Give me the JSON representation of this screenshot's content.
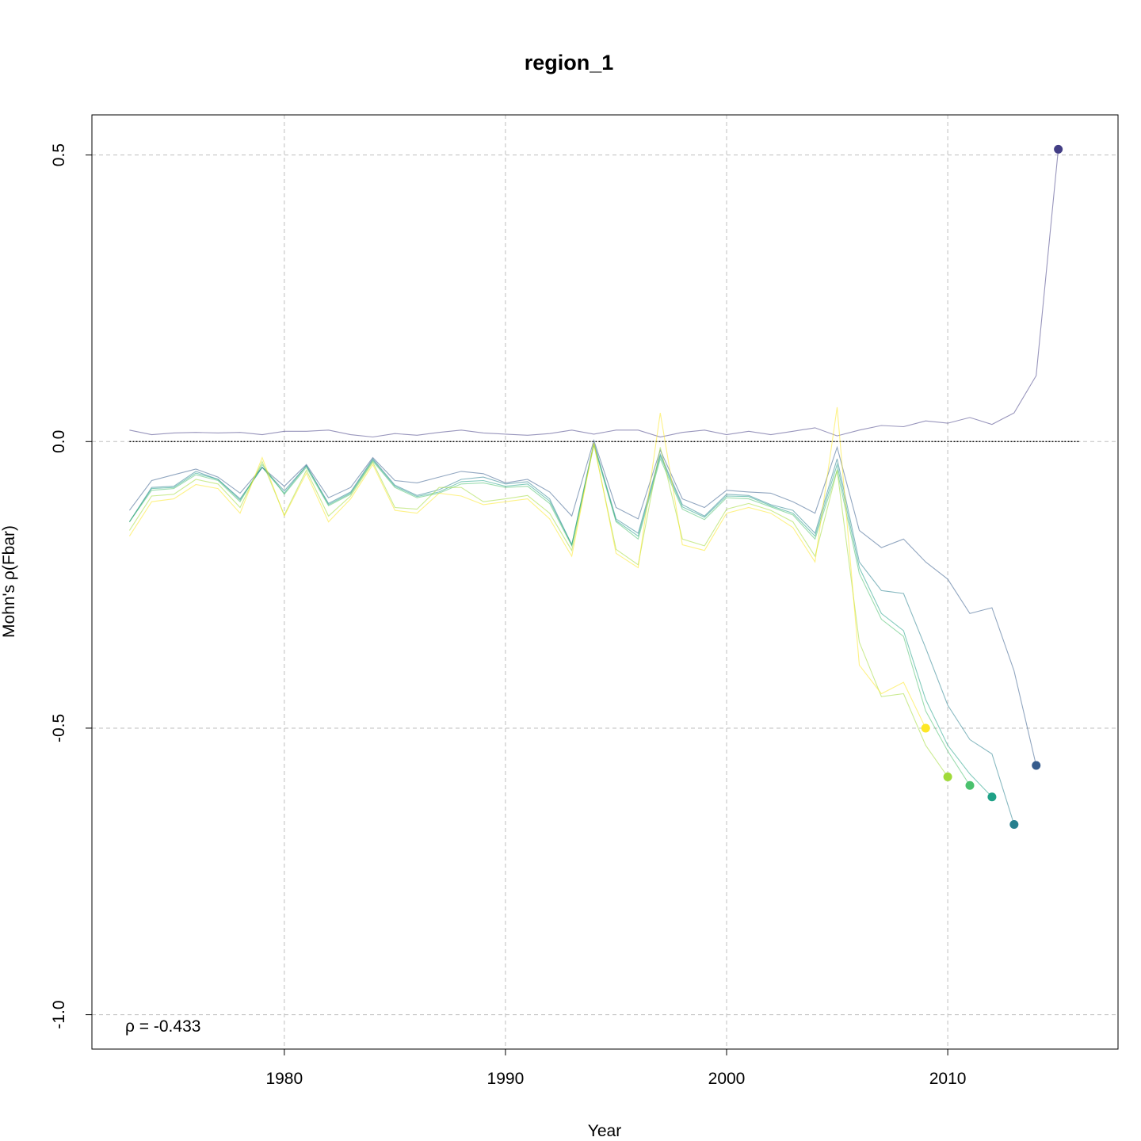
{
  "chart_data": {
    "type": "line",
    "title": "region_1",
    "xlabel": "Year",
    "ylabel": "Mohn's ρ(Fbar)",
    "xlim": [
      1971.3,
      2017.7
    ],
    "ylim": [
      -1.06,
      0.57
    ],
    "x_ticks": [
      1980,
      1990,
      2000,
      2010
    ],
    "y_ticks": [
      0.5,
      0.0,
      -0.5,
      -1.0
    ],
    "y_tick_labels": [
      "0.5",
      "0.0",
      "-0.5",
      "-1.0"
    ],
    "grid": true,
    "reference_line": {
      "y": 0,
      "x_from": 1973,
      "x_to": 2016
    },
    "annotation": {
      "label": "ρ = -0.433",
      "x": 1973,
      "y": -1.02
    },
    "series": [
      {
        "color": "#433e85",
        "x": [
          1973,
          1974,
          1975,
          1976,
          1977,
          1978,
          1979,
          1980,
          1981,
          1982,
          1983,
          1984,
          1985,
          1986,
          1987,
          1988,
          1989,
          1990,
          1991,
          1992,
          1993,
          1994,
          1995,
          1996,
          1997,
          1998,
          1999,
          2000,
          2001,
          2002,
          2003,
          2004,
          2005,
          2006,
          2007,
          2008,
          2009,
          2010,
          2011,
          2012,
          2013,
          2014,
          2015
        ],
        "y": [
          0.02,
          0.012,
          0.015,
          0.016,
          0.015,
          0.016,
          0.012,
          0.018,
          0.018,
          0.02,
          0.012,
          0.008,
          0.014,
          0.011,
          0.016,
          0.02,
          0.015,
          0.013,
          0.011,
          0.014,
          0.02,
          0.013,
          0.02,
          0.02,
          0.008,
          0.016,
          0.02,
          0.012,
          0.018,
          0.012,
          0.018,
          0.024,
          0.01,
          0.02,
          0.028,
          0.026,
          0.036,
          0.032,
          0.042,
          0.03,
          0.05,
          0.115,
          0.51
        ]
      },
      {
        "color": "#365c8d",
        "x": [
          1973,
          1974,
          1975,
          1976,
          1977,
          1978,
          1979,
          1980,
          1981,
          1982,
          1983,
          1984,
          1985,
          1986,
          1987,
          1988,
          1989,
          1990,
          1991,
          1992,
          1993,
          1994,
          1995,
          1996,
          1997,
          1998,
          1999,
          2000,
          2001,
          2002,
          2003,
          2004,
          2005,
          2006,
          2007,
          2008,
          2009,
          2010,
          2011,
          2012,
          2013,
          2014
        ],
        "y": [
          -0.12,
          -0.068,
          -0.058,
          -0.048,
          -0.062,
          -0.09,
          -0.045,
          -0.078,
          -0.04,
          -0.098,
          -0.08,
          -0.028,
          -0.068,
          -0.072,
          -0.062,
          -0.052,
          -0.056,
          -0.072,
          -0.066,
          -0.088,
          -0.13,
          0.002,
          -0.115,
          -0.135,
          -0.015,
          -0.1,
          -0.115,
          -0.085,
          -0.088,
          -0.09,
          -0.105,
          -0.125,
          -0.01,
          -0.155,
          -0.185,
          -0.17,
          -0.21,
          -0.24,
          -0.3,
          -0.29,
          -0.4,
          -0.565
        ]
      },
      {
        "color": "#277f8e",
        "x": [
          1973,
          1974,
          1975,
          1976,
          1977,
          1978,
          1979,
          1980,
          1981,
          1982,
          1983,
          1984,
          1985,
          1986,
          1987,
          1988,
          1989,
          1990,
          1991,
          1992,
          1993,
          1994,
          1995,
          1996,
          1997,
          1998,
          1999,
          2000,
          2001,
          2002,
          2003,
          2004,
          2005,
          2006,
          2007,
          2008,
          2009,
          2010,
          2011,
          2012,
          2013
        ],
        "y": [
          -0.14,
          -0.08,
          -0.078,
          -0.052,
          -0.066,
          -0.1,
          -0.045,
          -0.086,
          -0.042,
          -0.108,
          -0.088,
          -0.03,
          -0.076,
          -0.094,
          -0.084,
          -0.066,
          -0.062,
          -0.074,
          -0.07,
          -0.1,
          -0.18,
          -0.002,
          -0.135,
          -0.16,
          -0.022,
          -0.11,
          -0.13,
          -0.092,
          -0.094,
          -0.11,
          -0.12,
          -0.16,
          -0.03,
          -0.21,
          -0.26,
          -0.265,
          -0.36,
          -0.46,
          -0.52,
          -0.545,
          -0.668
        ]
      },
      {
        "color": "#1fa187",
        "x": [
          1973,
          1974,
          1975,
          1976,
          1977,
          1978,
          1979,
          1980,
          1981,
          1982,
          1983,
          1984,
          1985,
          1986,
          1987,
          1988,
          1989,
          1990,
          1991,
          1992,
          1993,
          1994,
          1995,
          1996,
          1997,
          1998,
          1999,
          2000,
          2001,
          2002,
          2003,
          2004,
          2005,
          2006,
          2007,
          2008,
          2009,
          2010,
          2011,
          2012
        ],
        "y": [
          -0.14,
          -0.082,
          -0.08,
          -0.055,
          -0.066,
          -0.102,
          -0.045,
          -0.09,
          -0.042,
          -0.11,
          -0.09,
          -0.032,
          -0.078,
          -0.096,
          -0.088,
          -0.07,
          -0.068,
          -0.078,
          -0.074,
          -0.104,
          -0.18,
          -0.004,
          -0.138,
          -0.165,
          -0.025,
          -0.114,
          -0.132,
          -0.095,
          -0.096,
          -0.112,
          -0.125,
          -0.165,
          -0.04,
          -0.22,
          -0.3,
          -0.33,
          -0.45,
          -0.53,
          -0.58,
          -0.62
        ]
      },
      {
        "color": "#4ac16d",
        "x": [
          1973,
          1974,
          1975,
          1976,
          1977,
          1978,
          1979,
          1980,
          1981,
          1982,
          1983,
          1984,
          1985,
          1986,
          1987,
          1988,
          1989,
          1990,
          1991,
          1992,
          1993,
          1994,
          1995,
          1996,
          1997,
          1998,
          1999,
          2000,
          2001,
          2002,
          2003,
          2004,
          2005,
          2006,
          2007,
          2008,
          2009,
          2010,
          2011
        ],
        "y": [
          -0.14,
          -0.085,
          -0.082,
          -0.058,
          -0.068,
          -0.105,
          -0.04,
          -0.092,
          -0.045,
          -0.112,
          -0.092,
          -0.034,
          -0.08,
          -0.098,
          -0.09,
          -0.074,
          -0.072,
          -0.08,
          -0.078,
          -0.108,
          -0.182,
          -0.006,
          -0.14,
          -0.17,
          -0.03,
          -0.118,
          -0.136,
          -0.098,
          -0.1,
          -0.114,
          -0.128,
          -0.17,
          -0.05,
          -0.23,
          -0.31,
          -0.34,
          -0.47,
          -0.54,
          -0.6
        ]
      },
      {
        "color": "#a0da39",
        "x": [
          1973,
          1974,
          1975,
          1976,
          1977,
          1978,
          1979,
          1980,
          1981,
          1982,
          1983,
          1984,
          1985,
          1986,
          1987,
          1988,
          1989,
          1990,
          1991,
          1992,
          1993,
          1994,
          1995,
          1996,
          1997,
          1998,
          1999,
          2000,
          2001,
          2002,
          2003,
          2004,
          2005,
          2006,
          2007,
          2008,
          2009,
          2010
        ],
        "y": [
          -0.155,
          -0.095,
          -0.092,
          -0.066,
          -0.074,
          -0.115,
          -0.035,
          -0.128,
          -0.05,
          -0.13,
          -0.095,
          -0.036,
          -0.115,
          -0.118,
          -0.08,
          -0.08,
          -0.105,
          -0.1,
          -0.094,
          -0.125,
          -0.19,
          -0.005,
          -0.188,
          -0.215,
          -0.01,
          -0.17,
          -0.182,
          -0.118,
          -0.108,
          -0.12,
          -0.14,
          -0.2,
          -0.05,
          -0.35,
          -0.445,
          -0.44,
          -0.53,
          -0.585
        ]
      },
      {
        "color": "#fde725",
        "x": [
          1973,
          1974,
          1975,
          1976,
          1977,
          1978,
          1979,
          1980,
          1981,
          1982,
          1983,
          1984,
          1985,
          1986,
          1987,
          1988,
          1989,
          1990,
          1991,
          1992,
          1993,
          1994,
          1995,
          1996,
          1997,
          1998,
          1999,
          2000,
          2001,
          2002,
          2003,
          2004,
          2005,
          2006,
          2007,
          2008,
          2009
        ],
        "y": [
          -0.165,
          -0.105,
          -0.1,
          -0.075,
          -0.082,
          -0.125,
          -0.028,
          -0.13,
          -0.055,
          -0.14,
          -0.1,
          -0.04,
          -0.12,
          -0.125,
          -0.09,
          -0.095,
          -0.11,
          -0.105,
          -0.1,
          -0.135,
          -0.2,
          -0.002,
          -0.195,
          -0.22,
          0.05,
          -0.18,
          -0.19,
          -0.125,
          -0.115,
          -0.125,
          -0.15,
          -0.21,
          0.06,
          -0.39,
          -0.44,
          -0.42,
          -0.5
        ]
      }
    ]
  }
}
